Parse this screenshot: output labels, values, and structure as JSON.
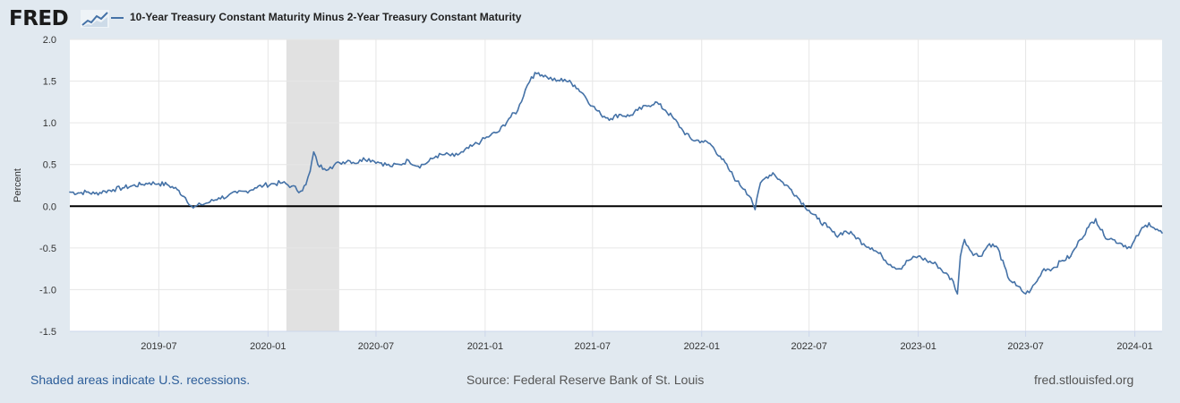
{
  "brand": {
    "name": "FRED",
    "icon": "chart-trend-icon"
  },
  "footer": {
    "note": "Shaded areas indicate U.S. recessions.",
    "source": "Source: Federal Reserve Bank of St. Louis",
    "site": "fred.stlouisfed.org"
  },
  "colors": {
    "series": "#4572a7",
    "recession": "#e1e1e1",
    "background": "#e1e9f0",
    "zero_line": "#000000"
  },
  "chart_data": {
    "type": "line",
    "title": "",
    "xlabel": "",
    "ylabel": "Percent",
    "ylim": [
      -1.5,
      2.0
    ],
    "xlim": [
      "2019-02-01",
      "2024-02-16"
    ],
    "yticks": [
      -1.5,
      -1.0,
      -0.5,
      0.0,
      0.5,
      1.0,
      1.5,
      2.0
    ],
    "ytick_labels": [
      "-1.5",
      "-1.0",
      "-0.5",
      "0.0",
      "0.5",
      "1.0",
      "1.5",
      "2.0"
    ],
    "xticks": [
      "2019-07-01",
      "2020-01-01",
      "2020-07-01",
      "2021-01-01",
      "2021-07-01",
      "2022-01-01",
      "2022-07-01",
      "2023-01-01",
      "2023-07-01",
      "2024-01-01"
    ],
    "xtick_labels": [
      "2019-07",
      "2020-01",
      "2020-07",
      "2021-01",
      "2021-07",
      "2022-01",
      "2022-07",
      "2023-01",
      "2023-07",
      "2024-01"
    ],
    "grid": true,
    "legend": "top-left",
    "recessions": [
      {
        "start": "2020-02-01",
        "end": "2020-04-30"
      }
    ],
    "reference_line": 0.0,
    "series": [
      {
        "name": "10-Year Treasury Constant Maturity Minus 2-Year Treasury Constant Maturity",
        "x": [
          "2019-02-01",
          "2019-02-15",
          "2019-03-01",
          "2019-03-15",
          "2019-04-01",
          "2019-04-15",
          "2019-05-01",
          "2019-05-15",
          "2019-06-01",
          "2019-06-15",
          "2019-07-01",
          "2019-07-15",
          "2019-08-01",
          "2019-08-15",
          "2019-08-28",
          "2019-09-10",
          "2019-09-25",
          "2019-10-10",
          "2019-10-25",
          "2019-11-10",
          "2019-11-25",
          "2019-12-10",
          "2019-12-25",
          "2020-01-10",
          "2020-01-25",
          "2020-02-10",
          "2020-02-25",
          "2020-03-05",
          "2020-03-12",
          "2020-03-18",
          "2020-03-25",
          "2020-04-05",
          "2020-04-15",
          "2020-05-01",
          "2020-05-15",
          "2020-06-01",
          "2020-06-10",
          "2020-06-25",
          "2020-07-10",
          "2020-07-25",
          "2020-08-10",
          "2020-08-25",
          "2020-09-10",
          "2020-09-25",
          "2020-10-10",
          "2020-10-25",
          "2020-11-10",
          "2020-11-25",
          "2020-12-10",
          "2020-12-25",
          "2021-01-10",
          "2021-01-25",
          "2021-02-10",
          "2021-02-25",
          "2021-03-10",
          "2021-03-20",
          "2021-04-01",
          "2021-04-15",
          "2021-05-01",
          "2021-05-15",
          "2021-06-01",
          "2021-06-15",
          "2021-07-01",
          "2021-07-15",
          "2021-08-01",
          "2021-08-15",
          "2021-09-01",
          "2021-09-15",
          "2021-10-01",
          "2021-10-15",
          "2021-11-01",
          "2021-11-15",
          "2021-12-01",
          "2021-12-15",
          "2022-01-01",
          "2022-01-15",
          "2022-02-01",
          "2022-02-15",
          "2022-03-01",
          "2022-03-15",
          "2022-03-25",
          "2022-04-01",
          "2022-04-10",
          "2022-04-20",
          "2022-05-01",
          "2022-05-15",
          "2022-06-01",
          "2022-06-15",
          "2022-07-01",
          "2022-07-15",
          "2022-08-01",
          "2022-08-15",
          "2022-09-01",
          "2022-09-15",
          "2022-10-01",
          "2022-10-15",
          "2022-11-01",
          "2022-11-15",
          "2022-12-01",
          "2022-12-15",
          "2023-01-01",
          "2023-01-15",
          "2023-02-01",
          "2023-02-15",
          "2023-03-01",
          "2023-03-08",
          "2023-03-13",
          "2023-03-20",
          "2023-04-01",
          "2023-04-15",
          "2023-05-01",
          "2023-05-15",
          "2023-06-01",
          "2023-06-15",
          "2023-07-01",
          "2023-07-10",
          "2023-07-20",
          "2023-08-01",
          "2023-08-15",
          "2023-09-01",
          "2023-09-15",
          "2023-10-01",
          "2023-10-15",
          "2023-10-27",
          "2023-11-10",
          "2023-11-25",
          "2023-12-10",
          "2023-12-25",
          "2024-01-10",
          "2024-01-25",
          "2024-02-05",
          "2024-02-16"
        ],
        "values": [
          0.17,
          0.16,
          0.17,
          0.15,
          0.18,
          0.2,
          0.22,
          0.24,
          0.26,
          0.28,
          0.27,
          0.26,
          0.2,
          0.1,
          -0.02,
          0.02,
          0.05,
          0.1,
          0.12,
          0.16,
          0.18,
          0.22,
          0.25,
          0.27,
          0.28,
          0.24,
          0.18,
          0.26,
          0.42,
          0.65,
          0.5,
          0.45,
          0.47,
          0.52,
          0.55,
          0.52,
          0.58,
          0.55,
          0.52,
          0.48,
          0.5,
          0.55,
          0.48,
          0.52,
          0.6,
          0.62,
          0.6,
          0.65,
          0.72,
          0.78,
          0.85,
          0.9,
          1.05,
          1.15,
          1.4,
          1.55,
          1.6,
          1.55,
          1.5,
          1.52,
          1.45,
          1.35,
          1.2,
          1.1,
          1.05,
          1.1,
          1.08,
          1.15,
          1.2,
          1.25,
          1.15,
          1.05,
          0.9,
          0.8,
          0.78,
          0.75,
          0.6,
          0.45,
          0.3,
          0.2,
          0.1,
          -0.04,
          0.28,
          0.35,
          0.4,
          0.3,
          0.2,
          0.08,
          -0.05,
          -0.15,
          -0.25,
          -0.35,
          -0.3,
          -0.35,
          -0.45,
          -0.5,
          -0.6,
          -0.7,
          -0.75,
          -0.65,
          -0.6,
          -0.65,
          -0.7,
          -0.8,
          -0.9,
          -1.05,
          -0.6,
          -0.4,
          -0.55,
          -0.6,
          -0.45,
          -0.5,
          -0.85,
          -0.95,
          -1.05,
          -1.0,
          -0.9,
          -0.75,
          -0.75,
          -0.65,
          -0.6,
          -0.4,
          -0.25,
          -0.15,
          -0.35,
          -0.4,
          -0.45,
          -0.5,
          -0.3,
          -0.2,
          -0.28,
          -0.32
        ]
      }
    ]
  }
}
